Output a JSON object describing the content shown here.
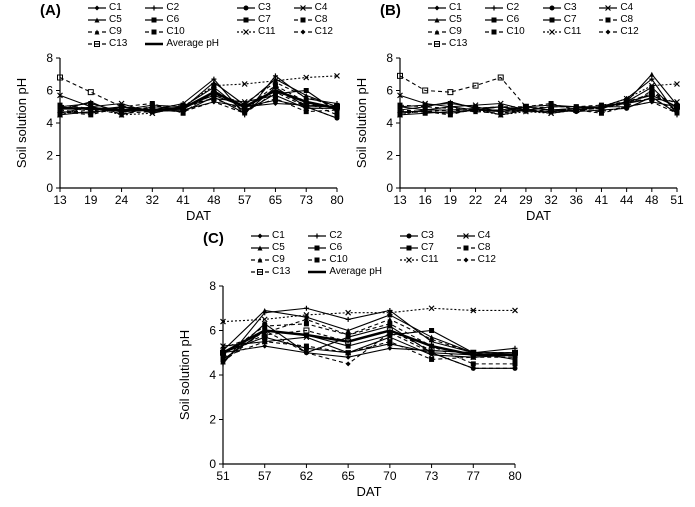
{
  "panels": {
    "A": {
      "label": "(A)",
      "ylabel": "Soil solution pH",
      "xlabel": "DAT",
      "ylim": [
        0,
        8
      ],
      "ytick_step": 2,
      "xticks": [
        13,
        19,
        24,
        32,
        41,
        48,
        57,
        65,
        73,
        80
      ],
      "label_fontsize": 13,
      "background_color": "#ffffff",
      "line_color": "#000000",
      "series": {
        "C1": [
          5.0,
          4.8,
          5.0,
          4.7,
          4.8,
          5.3,
          5.0,
          5.2,
          5.1,
          5.0
        ],
        "C2": [
          4.6,
          5.0,
          4.7,
          4.8,
          5.2,
          6.7,
          4.5,
          6.9,
          5.5,
          5.2
        ],
        "C3": [
          4.7,
          4.6,
          5.0,
          4.8,
          4.7,
          5.6,
          4.6,
          6.2,
          5.0,
          4.3
        ],
        "C4": [
          5.7,
          5.0,
          5.2,
          4.6,
          5.0,
          5.5,
          5.3,
          5.7,
          4.9,
          4.9
        ],
        "C5": [
          4.8,
          5.3,
          4.5,
          5.0,
          4.9,
          6.5,
          5.1,
          6.7,
          5.7,
          5.0
        ],
        "C6": [
          4.5,
          4.7,
          4.8,
          5.1,
          5.0,
          6.2,
          4.7,
          5.8,
          6.0,
          4.7
        ],
        "C7": [
          5.0,
          5.2,
          4.7,
          4.8,
          5.0,
          5.7,
          5.0,
          5.4,
          5.0,
          5.0
        ],
        "C8": [
          4.7,
          4.5,
          5.0,
          5.2,
          4.6,
          6.0,
          4.9,
          6.3,
          5.3,
          4.5
        ],
        "C9": [
          4.6,
          4.8,
          4.6,
          4.7,
          4.9,
          5.8,
          5.2,
          6.5,
          5.6,
          5.0
        ],
        "C10": [
          5.1,
          4.9,
          4.7,
          5.0,
          5.1,
          5.5,
          4.8,
          5.5,
          4.7,
          4.8
        ],
        "C11": [
          4.5,
          5.0,
          4.5,
          4.6,
          5.0,
          6.3,
          6.4,
          6.6,
          6.8,
          6.9
        ],
        "C12": [
          4.8,
          4.6,
          5.0,
          4.8,
          4.7,
          5.3,
          4.6,
          5.9,
          5.0,
          4.3
        ],
        "C13": [
          6.8,
          5.9,
          5.0,
          4.8,
          4.9,
          5.8,
          5.0,
          6.0,
          5.1,
          5.0
        ],
        "Average pH": [
          4.9,
          4.9,
          4.8,
          4.8,
          4.9,
          5.9,
          5.0,
          6.0,
          5.3,
          4.9
        ]
      }
    },
    "B": {
      "label": "(B)",
      "ylabel": "Soil solution pH",
      "xlabel": "DAT",
      "ylim": [
        0,
        8
      ],
      "ytick_step": 2,
      "xticks": [
        13,
        16,
        19,
        22,
        24,
        29,
        32,
        36,
        41,
        44,
        48,
        51
      ],
      "label_fontsize": 13,
      "background_color": "#ffffff",
      "line_color": "#000000",
      "series": {
        "C1": [
          5.0,
          4.8,
          4.8,
          4.9,
          5.0,
          4.7,
          4.7,
          4.8,
          5.0,
          5.0,
          5.3,
          5.0
        ],
        "C2": [
          4.6,
          4.8,
          5.0,
          4.8,
          4.7,
          5.0,
          4.8,
          4.9,
          5.0,
          5.5,
          6.7,
          4.5
        ],
        "C3": [
          4.7,
          4.7,
          4.6,
          4.8,
          5.0,
          4.8,
          4.8,
          4.7,
          4.8,
          4.9,
          5.6,
          4.6
        ],
        "C4": [
          5.7,
          5.2,
          5.0,
          5.1,
          5.2,
          4.8,
          4.6,
          4.8,
          5.0,
          5.2,
          5.5,
          5.3
        ],
        "C5": [
          4.8,
          5.0,
          5.3,
          4.9,
          4.5,
          4.8,
          5.0,
          5.0,
          4.9,
          5.3,
          7.0,
          5.1
        ],
        "C6": [
          4.5,
          4.6,
          4.7,
          4.8,
          4.8,
          5.0,
          5.1,
          5.0,
          5.0,
          5.3,
          6.2,
          4.7
        ],
        "C7": [
          5.0,
          5.1,
          5.2,
          5.0,
          4.7,
          4.8,
          4.8,
          4.9,
          5.0,
          5.3,
          5.7,
          5.0
        ],
        "C8": [
          4.7,
          4.7,
          4.5,
          4.9,
          5.0,
          5.0,
          5.2,
          4.8,
          4.6,
          5.0,
          6.0,
          4.9
        ],
        "C9": [
          4.6,
          4.7,
          4.8,
          4.7,
          4.6,
          4.8,
          4.7,
          4.8,
          4.9,
          5.2,
          5.8,
          5.2
        ],
        "C10": [
          5.1,
          5.0,
          4.9,
          4.8,
          4.7,
          4.9,
          5.0,
          5.0,
          5.1,
          5.3,
          5.5,
          4.8
        ],
        "C11": [
          4.5,
          4.8,
          5.0,
          4.8,
          4.5,
          4.7,
          4.6,
          4.8,
          5.0,
          5.5,
          6.3,
          6.4
        ],
        "C12": [
          4.8,
          4.7,
          4.6,
          4.8,
          5.0,
          4.8,
          4.8,
          4.8,
          4.7,
          5.0,
          5.3,
          4.6
        ],
        "C13": [
          6.9,
          6.0,
          5.9,
          6.3,
          6.8,
          5.0,
          4.8,
          4.8,
          4.9,
          5.3,
          5.8,
          5.0
        ]
      }
    },
    "C": {
      "label": "(C)",
      "ylabel": "Soil solution pH",
      "xlabel": "DAT",
      "ylim": [
        0,
        8
      ],
      "ytick_step": 2,
      "xticks": [
        51,
        57,
        62,
        65,
        70,
        73,
        77,
        80
      ],
      "label_fontsize": 13,
      "background_color": "#ffffff",
      "line_color": "#000000",
      "series": {
        "C1": [
          5.0,
          5.3,
          5.0,
          4.8,
          5.2,
          5.1,
          5.0,
          5.0
        ],
        "C2": [
          4.5,
          6.8,
          7.0,
          6.5,
          6.9,
          5.5,
          5.0,
          5.2
        ],
        "C3": [
          4.6,
          6.3,
          5.0,
          5.7,
          6.2,
          5.0,
          4.3,
          4.3
        ],
        "C4": [
          5.3,
          5.5,
          5.7,
          5.0,
          5.7,
          4.9,
          4.8,
          4.9
        ],
        "C5": [
          5.1,
          6.9,
          6.6,
          6.0,
          6.7,
          5.7,
          5.0,
          5.0
        ],
        "C6": [
          4.7,
          6.0,
          5.8,
          5.3,
          5.8,
          6.0,
          5.0,
          4.7
        ],
        "C7": [
          5.0,
          5.7,
          5.2,
          5.0,
          5.4,
          5.0,
          4.9,
          5.0
        ],
        "C8": [
          4.9,
          6.2,
          6.3,
          5.8,
          6.3,
          5.3,
          4.5,
          4.5
        ],
        "C9": [
          5.2,
          5.9,
          6.5,
          5.8,
          6.5,
          5.6,
          5.0,
          5.0
        ],
        "C10": [
          4.8,
          5.5,
          5.3,
          5.0,
          5.5,
          4.7,
          4.8,
          4.8
        ],
        "C11": [
          6.4,
          6.5,
          6.7,
          6.8,
          6.8,
          7.0,
          6.9,
          6.9
        ],
        "C12": [
          4.6,
          6.0,
          5.0,
          4.5,
          5.9,
          5.0,
          4.3,
          4.3
        ],
        "C13": [
          5.0,
          5.8,
          6.0,
          5.5,
          6.0,
          5.1,
          5.0,
          5.0
        ],
        "Average pH": [
          5.0,
          6.0,
          5.8,
          5.5,
          6.0,
          5.3,
          4.9,
          4.9
        ]
      }
    }
  },
  "styles": {
    "C1": {
      "dash": "",
      "marker": "diamond"
    },
    "C2": {
      "dash": "",
      "marker": "plus"
    },
    "C3": {
      "dash": "",
      "marker": "circle"
    },
    "C4": {
      "dash": "",
      "marker": "x"
    },
    "C5": {
      "dash": "",
      "marker": "triangle"
    },
    "C6": {
      "dash": "",
      "marker": "square"
    },
    "C7": {
      "dash": "",
      "marker": "square-fill"
    },
    "C8": {
      "dash": "4,3",
      "marker": "square-fill"
    },
    "C9": {
      "dash": "4,3",
      "marker": "triangle"
    },
    "C10": {
      "dash": "4,3",
      "marker": "square"
    },
    "C11": {
      "dash": "2,2",
      "marker": "x"
    },
    "C12": {
      "dash": "4,3",
      "marker": "diamond"
    },
    "C13": {
      "dash": "4,3",
      "marker": "square-open"
    },
    "Average pH": {
      "dash": "",
      "marker": "none",
      "width": 2.5
    }
  },
  "legend_order": [
    "C1",
    "C2",
    "C3",
    "C4",
    "C5",
    "C6",
    "C7",
    "C8",
    "C9",
    "C10",
    "C11",
    "C12",
    "C13",
    "Average pH"
  ],
  "legend_order_B": [
    "C1",
    "C2",
    "C3",
    "C4",
    "C5",
    "C6",
    "C7",
    "C8",
    "C9",
    "C10",
    "C11",
    "C12",
    "C13"
  ],
  "colors": {
    "line": "#000000",
    "bg": "#ffffff"
  }
}
